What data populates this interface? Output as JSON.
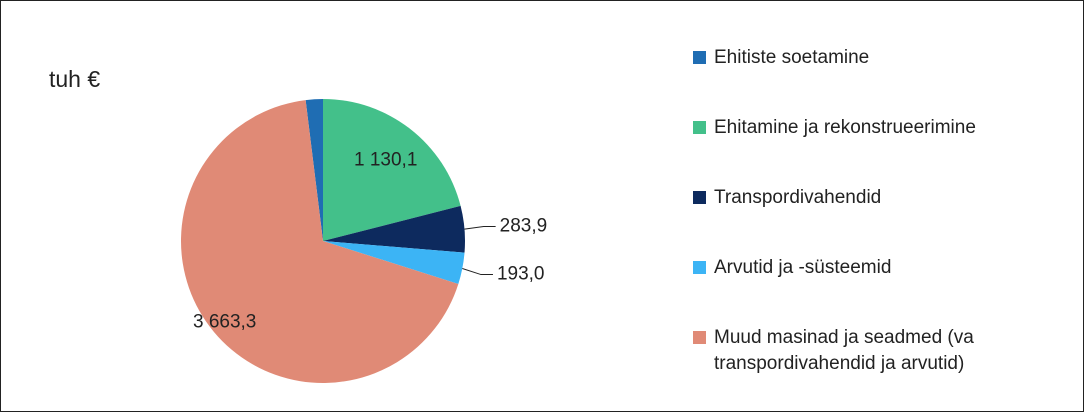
{
  "chart_data": {
    "type": "pie",
    "title": "tuh €",
    "categories": [
      "Ehitiste soetamine",
      "Ehitamine ja rekonstrueerimine",
      "Transpordivahendid",
      "Arvutid ja -süsteemid",
      "Muud masinad ja seadmed (va transpordivahendid ja arvutid)"
    ],
    "values": [
      105,
      1130.1,
      283.9,
      193.0,
      3663.3
    ],
    "value_labels": [
      null,
      "1 130,1",
      "283,9",
      "193,0",
      "3 663,3"
    ],
    "colors": [
      "#1f6db3",
      "#43c08a",
      "#0d2a5e",
      "#3cb4f5",
      "#e08a76"
    ],
    "legend": "right"
  }
}
